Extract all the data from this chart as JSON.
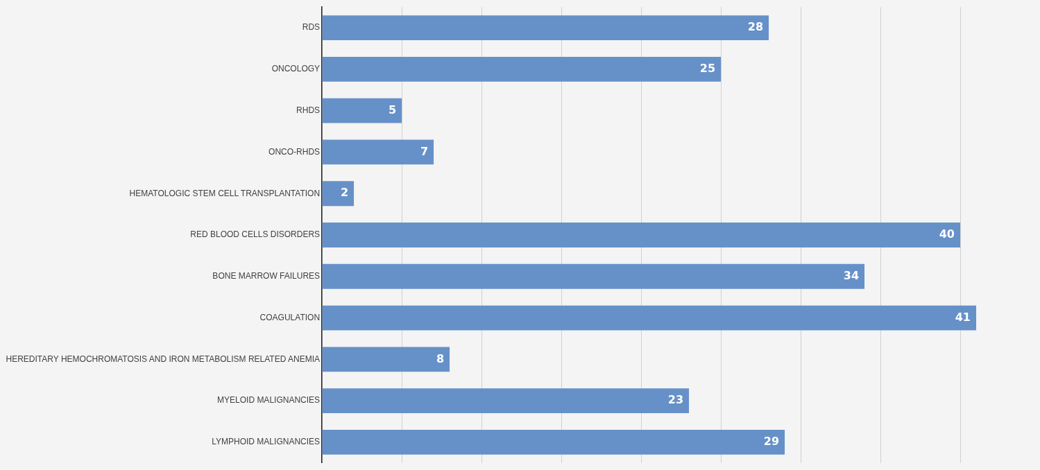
{
  "chart_data": {
    "type": "bar",
    "orientation": "horizontal",
    "categories": [
      "RDS",
      "ONCOLOGY",
      "RHDS",
      "ONCO-RHDS",
      "HEMATOLOGIC STEM CELL TRANSPLANTATION",
      "RED BLOOD CELLS DISORDERS",
      "BONE MARROW FAILURES",
      "COAGULATION",
      "HEREDITARY HEMOCHROMATOSIS AND IRON METABOLISM RELATED ANEMIA",
      "MYELOID MALIGNANCIES",
      "LYMPHOID MALIGNANCIES"
    ],
    "values": [
      28,
      25,
      5,
      7,
      2,
      40,
      34,
      41,
      8,
      23,
      29
    ],
    "color": "#6691c8",
    "data_labels": true,
    "grid": "x",
    "tick_labels": "y",
    "xticks": [
      {
        "value": 0,
        "label": null
      },
      {
        "value": 5,
        "label": null
      },
      {
        "value": 10,
        "label": null
      },
      {
        "value": 15,
        "label": null
      },
      {
        "value": 20,
        "label": null
      },
      {
        "value": 25,
        "label": null
      },
      {
        "value": 30,
        "label": null
      },
      {
        "value": 35,
        "label": null
      },
      {
        "value": 40,
        "label": null
      }
    ]
  }
}
